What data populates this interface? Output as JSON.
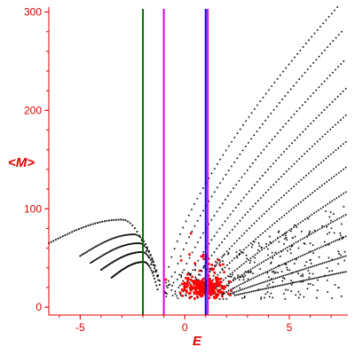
{
  "chart_data": {
    "type": "scatter",
    "xlabel": "E",
    "ylabel": "<M>",
    "xlim": [
      -6.5,
      7.8
    ],
    "ylim": [
      -8,
      305
    ],
    "x_ticks": [
      -5,
      0,
      5
    ],
    "y_ticks": [
      0,
      100,
      200,
      300
    ],
    "grid": false,
    "axis_color": "#e00000",
    "vertical_lines": [
      {
        "x": -2.0,
        "color": "#007000"
      },
      {
        "x": -1.0,
        "color": "#e000e0"
      },
      {
        "x": 1.0,
        "color": "#0000ff"
      },
      {
        "x": 1.1,
        "color": "#e000e0"
      }
    ],
    "series": [
      {
        "color": "#000000",
        "families": [
          {
            "x0": -0.9,
            "x1": 7.3,
            "y0": 25,
            "y1": 305,
            "p": 0.7
          },
          {
            "x0": -0.6,
            "x1": 7.5,
            "y0": 22,
            "y1": 280,
            "p": 0.72
          },
          {
            "x0": -0.3,
            "x1": 7.6,
            "y0": 20,
            "y1": 250,
            "p": 0.75
          },
          {
            "x0": 0.0,
            "x1": 7.7,
            "y0": 18,
            "y1": 222,
            "p": 0.78
          },
          {
            "x0": 0.3,
            "x1": 7.7,
            "y0": 17,
            "y1": 195,
            "p": 0.8
          },
          {
            "x0": 0.6,
            "x1": 7.7,
            "y0": 16,
            "y1": 168,
            "p": 0.82
          },
          {
            "x0": 0.9,
            "x1": 7.7,
            "y0": 15,
            "y1": 142,
            "p": 0.85
          },
          {
            "x0": 1.2,
            "x1": 7.7,
            "y0": 14,
            "y1": 117,
            "p": 0.88
          },
          {
            "x0": 1.5,
            "x1": 7.7,
            "y0": 14,
            "y1": 94,
            "p": 0.9
          },
          {
            "x0": 1.8,
            "x1": 7.7,
            "y0": 13,
            "y1": 72,
            "p": 0.92
          },
          {
            "x0": 2.1,
            "x1": 7.7,
            "y0": 13,
            "y1": 52,
            "p": 0.95
          },
          {
            "x0": 2.4,
            "x1": 7.7,
            "y0": 12,
            "y1": 36,
            "p": 0.97
          }
        ],
        "low_arcs": [
          {
            "x0": -6.5,
            "x1": -1.5,
            "ya": 65,
            "yb": 89,
            "yc": 60
          },
          {
            "x0": -5.0,
            "x1": -1.3,
            "ya": 52,
            "yb": 74,
            "yc": 52
          },
          {
            "x0": -4.5,
            "x1": -1.2,
            "ya": 45,
            "yb": 65,
            "yc": 45
          },
          {
            "x0": -4.0,
            "x1": -1.2,
            "ya": 38,
            "yb": 56,
            "yc": 38
          },
          {
            "x0": -3.5,
            "x1": -1.3,
            "ya": 30,
            "yb": 46,
            "yc": 30
          }
        ]
      },
      {
        "color": "#ff0000",
        "center_x": 1.0,
        "center_y": 20,
        "x_spread": 1.4,
        "y_spread": 12,
        "count": 260
      }
    ]
  }
}
